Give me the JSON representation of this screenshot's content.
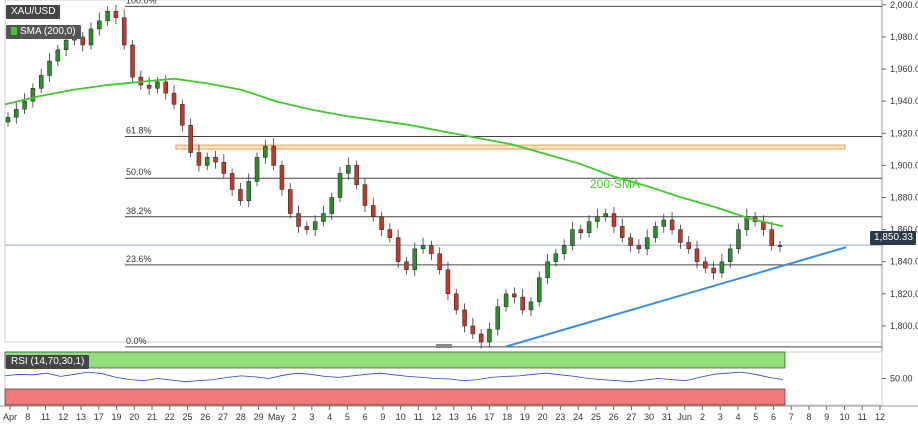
{
  "header": {
    "symbol": "XAU/USD",
    "sma_legend": "SMA (200,0)"
  },
  "price_panel": {
    "price_tag": "1,850.33",
    "sma_annotation": "200-SMA",
    "y_ticks": [
      "2,000.00",
      "1,980.00",
      "1,960.00",
      "1,940.00",
      "1,920.00",
      "1,900.00",
      "1,880.00",
      "1,860.00",
      "1,840.00",
      "1,820.00",
      "1,800.00"
    ],
    "fibonacci": [
      {
        "label": "100.0%",
        "price": 1999
      },
      {
        "label": "61.8%",
        "price": 1918
      },
      {
        "label": "50.0%",
        "price": 1892
      },
      {
        "label": "38.2%",
        "price": 1868
      },
      {
        "label": "23.6%",
        "price": 1838
      },
      {
        "label": "0.0%",
        "price": 1787
      }
    ]
  },
  "rsi_panel": {
    "legend": "RSI (14,70,30,1)",
    "y_tick": "50.00",
    "overbought": 70,
    "oversold": 30
  },
  "x_ticks": [
    "Apr",
    "8",
    "11",
    "12",
    "13",
    "17",
    "19",
    "20",
    "21",
    "22",
    "25",
    "26",
    "27",
    "28",
    "29",
    "May",
    "2",
    "3",
    "4",
    "5",
    "6",
    "9",
    "10",
    "11",
    "12",
    "13",
    "16",
    "17",
    "18",
    "19",
    "20",
    "23",
    "24",
    "25",
    "26",
    "27",
    "30",
    "31",
    "Jun",
    "2",
    "3",
    "4",
    "5",
    "6",
    "7",
    "8",
    "9",
    "10",
    "11",
    "12"
  ],
  "colors": {
    "sma": "#3ec92a",
    "trendline": "#3a8ee8",
    "resistance_zone": "#e8a054",
    "bull": "#2e8b2e",
    "bear": "#c0392b",
    "rsi_line": "#2a3fd8",
    "rsi_overbought": "#8fe07a",
    "rsi_oversold": "#f07a7a"
  },
  "chart_data": {
    "type": "candlestick",
    "title": "XAU/USD",
    "ylim": [
      1790,
      2003
    ],
    "series": [
      {
        "name": "SMA (200,0)",
        "values": [
          1938,
          1943,
          1947,
          1950,
          1952,
          1954,
          1951,
          1947,
          1940,
          1935,
          1931,
          1928,
          1925,
          1921,
          1917,
          1913,
          1907,
          1901,
          1893,
          1887,
          1880,
          1874,
          1867,
          1862
        ]
      },
      {
        "name": "RSI (14,70,30,1)",
        "values": [
          55,
          58,
          57,
          60,
          54,
          58,
          62,
          59,
          52,
          48,
          46,
          50,
          47,
          44,
          46,
          48,
          52,
          55,
          53,
          50,
          56,
          60,
          58,
          54,
          52,
          55,
          58,
          60,
          57,
          54,
          52,
          50,
          49,
          46,
          48,
          52,
          54,
          55,
          58,
          60,
          57,
          54,
          50,
          48,
          46,
          44,
          47,
          50,
          48,
          46,
          52,
          58,
          60,
          62,
          58,
          52,
          48
        ]
      }
    ],
    "candles_close": [
      1930,
      1935,
      1940,
      1948,
      1956,
      1965,
      1972,
      1978,
      1980,
      1975,
      1985,
      1990,
      1996,
      1992,
      1975,
      1955,
      1950,
      1948,
      1952,
      1945,
      1938,
      1925,
      1908,
      1900,
      1905,
      1902,
      1895,
      1885,
      1878,
      1890,
      1905,
      1912,
      1900,
      1885,
      1870,
      1862,
      1860,
      1865,
      1870,
      1880,
      1895,
      1900,
      1888,
      1875,
      1868,
      1860,
      1855,
      1840,
      1835,
      1848,
      1850,
      1845,
      1835,
      1820,
      1810,
      1800,
      1795,
      1790,
      1798,
      1812,
      1820,
      1818,
      1810,
      1815,
      1830,
      1840,
      1845,
      1850,
      1860,
      1858,
      1865,
      1868,
      1870,
      1862,
      1855,
      1850,
      1848,
      1855,
      1862,
      1866,
      1860,
      1852,
      1848,
      1840,
      1836,
      1833,
      1840,
      1848,
      1860,
      1868,
      1865,
      1860,
      1850,
      1850
    ],
    "trendline": [
      {
        "x": "May 16",
        "y": 1787
      },
      {
        "x": "Jun 8",
        "y": 1849
      }
    ],
    "resistance_zone": [
      1910,
      1912
    ],
    "fib_levels": [
      100.0,
      61.8,
      50.0,
      38.2,
      23.6,
      0.0
    ]
  }
}
